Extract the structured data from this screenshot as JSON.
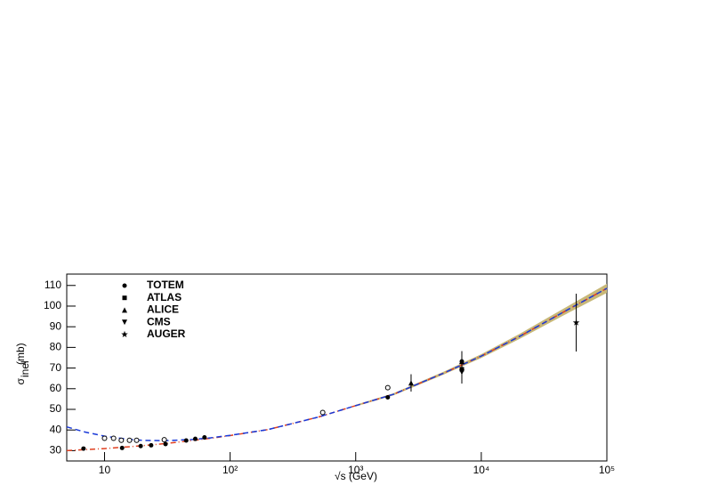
{
  "chart_data": {
    "type": "scatter",
    "x_label": "√s (GeV)",
    "y_label": {
      "symbol": "σ",
      "subscript": "inel",
      "unit": "(mb)"
    },
    "x_log": true,
    "xlim": [
      5,
      100000
    ],
    "xticks": [
      {
        "value": 10,
        "label": "10"
      },
      {
        "value": 100,
        "label": "10²"
      },
      {
        "value": 1000,
        "label": "10³"
      },
      {
        "value": 10000,
        "label": "10⁴"
      },
      {
        "value": 100000,
        "label": "10⁵"
      }
    ],
    "ylim": [
      25,
      115.5
    ],
    "yticks": [
      30,
      40,
      50,
      60,
      70,
      80,
      90,
      100,
      110
    ],
    "legend": "top-left",
    "series": [
      {
        "name": "TOTEM",
        "marker": "circle",
        "color": "#000000",
        "x": [
          7000
        ],
        "values": [
          73.2
        ],
        "errors": [
          1.3
        ]
      },
      {
        "name": "ATLAS",
        "marker": "square",
        "color": "#000000",
        "x": [
          7000
        ],
        "values": [
          69.4
        ],
        "errors": [
          6.9
        ]
      },
      {
        "name": "ALICE",
        "marker": "triangle-up",
        "color": "#000000",
        "x": [
          2760,
          7000
        ],
        "values": [
          62.8,
          73.2
        ],
        "errors": [
          4.2,
          5.0
        ]
      },
      {
        "name": "CMS",
        "marker": "triangle-down",
        "color": "#000000",
        "x": [
          7000
        ],
        "values": [
          68.0
        ],
        "errors": [
          2.0
        ]
      },
      {
        "name": "AUGER",
        "marker": "star",
        "color": "#000000",
        "x": [
          57000
        ],
        "values": [
          92.0
        ],
        "errors": [
          14.0
        ]
      }
    ],
    "other_points": [
      {
        "marker": "circle",
        "color": "#000000",
        "x": [
          6.8,
          13.8,
          19.4,
          23.5,
          30.6,
          44.7,
          52.8,
          62.5,
          1800
        ],
        "values": [
          31.0,
          31.3,
          32.2,
          32.6,
          33.2,
          34.9,
          35.7,
          36.4,
          55.8
        ]
      },
      {
        "marker": "open-circle",
        "color": "#000000",
        "x": [
          10.0,
          11.8,
          13.6,
          15.8,
          18.0,
          29.9,
          546,
          1800
        ],
        "values": [
          36.0,
          36.0,
          35.0,
          35.0,
          35.0,
          35.3,
          48.5,
          60.5
        ]
      }
    ],
    "curves": [
      {
        "color": "#e04020",
        "dash": "6,3,1,3",
        "x": [
          5,
          7,
          10,
          15,
          20,
          30,
          50,
          70,
          100,
          200,
          500,
          1000,
          2000,
          5000,
          10000,
          20000,
          50000,
          100000
        ],
        "values": [
          30.0,
          30.5,
          31.0,
          31.8,
          32.4,
          33.4,
          34.9,
          36.0,
          37.3,
          40.2,
          46.2,
          51.8,
          57.3,
          67.5,
          75.8,
          85.2,
          98.6,
          108.6
        ]
      },
      {
        "color": "#1a3ad8",
        "dash": "6,4",
        "x": [
          5,
          7,
          10,
          15,
          20,
          30,
          50,
          70,
          100,
          200,
          500,
          1000,
          2000,
          5000,
          10000,
          20000,
          50000,
          100000
        ],
        "values": [
          41.5,
          39.0,
          37.0,
          35.6,
          35.0,
          34.8,
          35.4,
          36.2,
          37.4,
          40.2,
          46.2,
          51.8,
          57.3,
          67.5,
          75.8,
          85.2,
          98.6,
          108.6
        ]
      }
    ],
    "band": {
      "color": "#c8b878",
      "x": [
        1000,
        2000,
        5000,
        10000,
        20000,
        50000,
        100000
      ],
      "lower": [
        51.4,
        56.8,
        66.8,
        74.9,
        84.0,
        96.9,
        106.4
      ],
      "upper": [
        52.2,
        57.8,
        68.2,
        76.7,
        86.4,
        100.3,
        110.8
      ]
    }
  }
}
